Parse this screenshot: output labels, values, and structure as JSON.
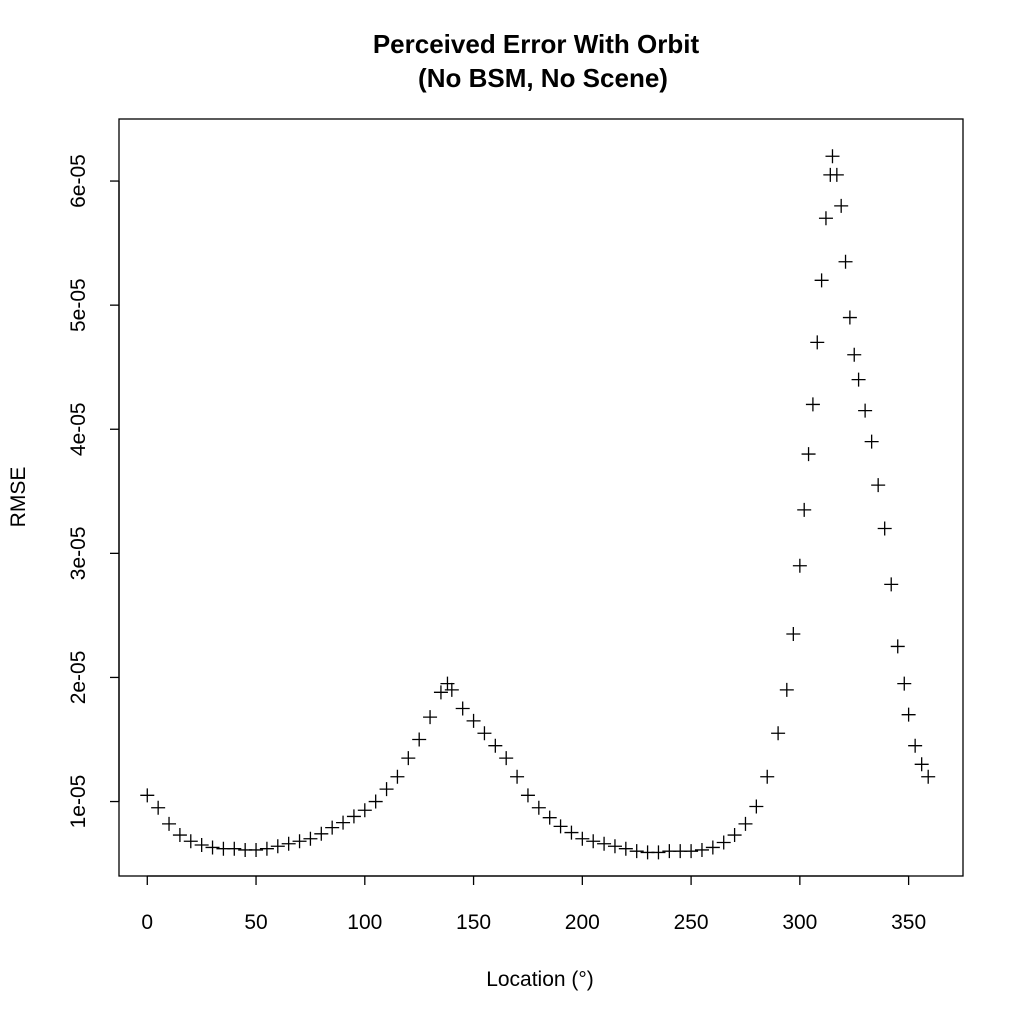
{
  "chart_data": {
    "type": "scatter",
    "title": [
      "Perceived Error With Orbit",
      "(No BSM, No Scene)"
    ],
    "xlabel": "Location (°)",
    "ylabel": "RMSE",
    "xlim": [
      -13,
      375
    ],
    "ylim": [
      4e-06,
      6.5e-05
    ],
    "x_ticks": [
      0,
      50,
      100,
      150,
      200,
      250,
      300,
      350
    ],
    "x_tick_labels": [
      "0",
      "50",
      "100",
      "150",
      "200",
      "250",
      "300",
      "350"
    ],
    "y_ticks": [
      1e-05,
      2e-05,
      3e-05,
      4e-05,
      5e-05,
      6e-05
    ],
    "y_tick_labels": [
      "1e-05",
      "2e-05",
      "3e-05",
      "4e-05",
      "5e-05",
      "6e-05"
    ],
    "marker": "plus",
    "grid": false,
    "legend": "none",
    "series": [
      {
        "color": "#000000",
        "points": [
          [
            0,
            1.05e-05
          ],
          [
            5,
            9.5e-06
          ],
          [
            10,
            8.2e-06
          ],
          [
            15,
            7.3e-06
          ],
          [
            20,
            6.8e-06
          ],
          [
            25,
            6.5e-06
          ],
          [
            30,
            6.3e-06
          ],
          [
            35,
            6.2e-06
          ],
          [
            40,
            6.2e-06
          ],
          [
            45,
            6.1e-06
          ],
          [
            50,
            6.1e-06
          ],
          [
            55,
            6.2e-06
          ],
          [
            60,
            6.4e-06
          ],
          [
            65,
            6.6e-06
          ],
          [
            70,
            6.8e-06
          ],
          [
            75,
            7e-06
          ],
          [
            80,
            7.4e-06
          ],
          [
            85,
            7.9e-06
          ],
          [
            90,
            8.3e-06
          ],
          [
            95,
            8.8e-06
          ],
          [
            100,
            9.3e-06
          ],
          [
            105,
            1e-05
          ],
          [
            110,
            1.1e-05
          ],
          [
            115,
            1.2e-05
          ],
          [
            120,
            1.35e-05
          ],
          [
            125,
            1.5e-05
          ],
          [
            130,
            1.68e-05
          ],
          [
            135,
            1.88e-05
          ],
          [
            138,
            1.95e-05
          ],
          [
            140,
            1.9e-05
          ],
          [
            145,
            1.75e-05
          ],
          [
            150,
            1.65e-05
          ],
          [
            155,
            1.55e-05
          ],
          [
            160,
            1.45e-05
          ],
          [
            165,
            1.35e-05
          ],
          [
            170,
            1.2e-05
          ],
          [
            175,
            1.05e-05
          ],
          [
            180,
            9.5e-06
          ],
          [
            185,
            8.7e-06
          ],
          [
            190,
            8e-06
          ],
          [
            195,
            7.5e-06
          ],
          [
            200,
            7e-06
          ],
          [
            205,
            6.8e-06
          ],
          [
            210,
            6.6e-06
          ],
          [
            215,
            6.4e-06
          ],
          [
            220,
            6.2e-06
          ],
          [
            225,
            6e-06
          ],
          [
            230,
            5.9e-06
          ],
          [
            235,
            5.9e-06
          ],
          [
            240,
            6e-06
          ],
          [
            245,
            6e-06
          ],
          [
            250,
            6e-06
          ],
          [
            255,
            6.1e-06
          ],
          [
            260,
            6.3e-06
          ],
          [
            265,
            6.7e-06
          ],
          [
            270,
            7.3e-06
          ],
          [
            275,
            8.2e-06
          ],
          [
            280,
            9.6e-06
          ],
          [
            285,
            1.2e-05
          ],
          [
            290,
            1.55e-05
          ],
          [
            294,
            1.9e-05
          ],
          [
            297,
            2.35e-05
          ],
          [
            300,
            2.9e-05
          ],
          [
            302,
            3.35e-05
          ],
          [
            304,
            3.8e-05
          ],
          [
            306,
            4.2e-05
          ],
          [
            308,
            4.7e-05
          ],
          [
            310,
            5.2e-05
          ],
          [
            312,
            5.7e-05
          ],
          [
            314,
            6.05e-05
          ],
          [
            315,
            6.2e-05
          ],
          [
            317,
            6.05e-05
          ],
          [
            319,
            5.8e-05
          ],
          [
            321,
            5.35e-05
          ],
          [
            323,
            4.9e-05
          ],
          [
            325,
            4.6e-05
          ],
          [
            327,
            4.4e-05
          ],
          [
            330,
            4.15e-05
          ],
          [
            333,
            3.9e-05
          ],
          [
            336,
            3.55e-05
          ],
          [
            339,
            3.2e-05
          ],
          [
            342,
            2.75e-05
          ],
          [
            345,
            2.25e-05
          ],
          [
            348,
            1.95e-05
          ],
          [
            350,
            1.7e-05
          ],
          [
            353,
            1.45e-05
          ],
          [
            356,
            1.3e-05
          ],
          [
            359,
            1.2e-05
          ]
        ]
      }
    ]
  }
}
